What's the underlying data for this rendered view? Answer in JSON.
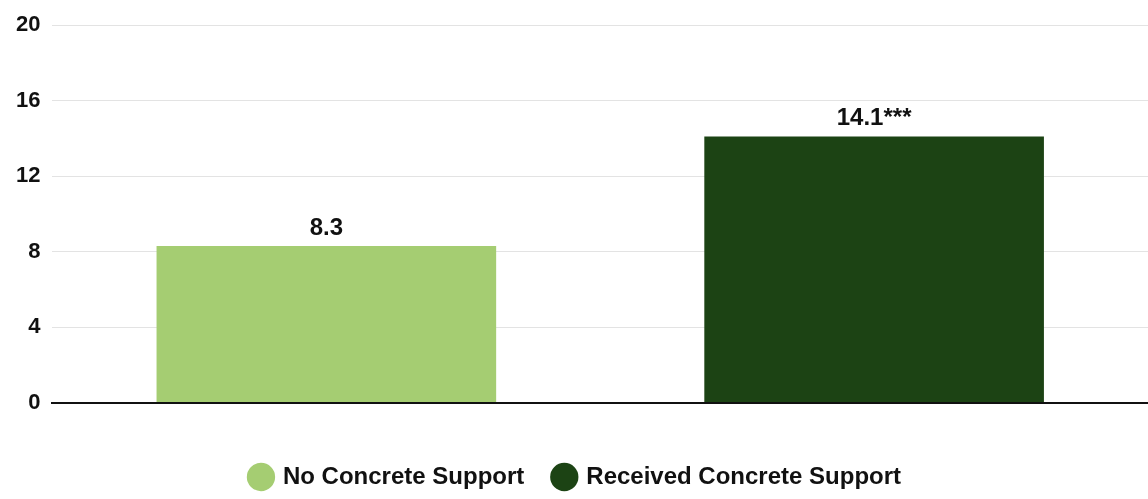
{
  "chart_data": {
    "type": "bar",
    "categories": [
      null
    ],
    "series": [
      {
        "name": "No Concrete Support",
        "color": "#a5cd72",
        "values": [
          8.3
        ],
        "value_labels": [
          "8.3"
        ]
      },
      {
        "name": "Received Concrete Support",
        "color": "#1c4314",
        "values": [
          14.1
        ],
        "value_labels": [
          "14.1***"
        ]
      }
    ],
    "ylim": [
      0,
      20
    ],
    "yticks": [
      0,
      4,
      8,
      12,
      16,
      20
    ],
    "grid": "y",
    "legend": "bottom"
  }
}
